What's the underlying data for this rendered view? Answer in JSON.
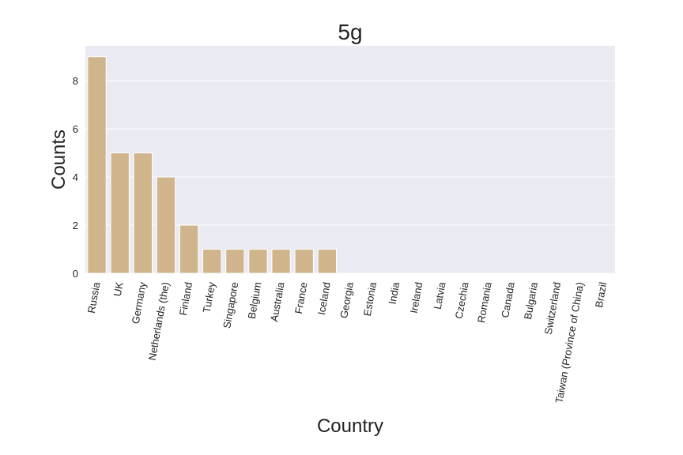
{
  "chart_data": {
    "type": "bar",
    "title": "5g",
    "xlabel": "Country",
    "ylabel": "Counts",
    "categories": [
      "Russia",
      "UK",
      "Germany",
      "Netherlands (the)",
      "Finland",
      "Turkey",
      "Singapore",
      "Belgium",
      "Australia",
      "France",
      "Iceland",
      "Georgia",
      "Estonia",
      "India",
      "Ireland",
      "Latvia",
      "Czechia",
      "Romania",
      "Canada",
      "Bulgaria",
      "Switzerland",
      "Taiwan (Province of China)",
      "Brazil"
    ],
    "values": [
      9,
      5,
      5,
      4,
      2,
      1,
      1,
      1,
      1,
      1,
      1,
      0,
      0,
      0,
      0,
      0,
      0,
      0,
      0,
      0,
      0,
      0,
      0
    ],
    "ylim": [
      0,
      9.45
    ],
    "yticks": [
      0,
      2,
      4,
      6,
      8
    ],
    "grid": true,
    "bar_color": "#d0b48c",
    "plot_background": "#eaeaf2"
  }
}
